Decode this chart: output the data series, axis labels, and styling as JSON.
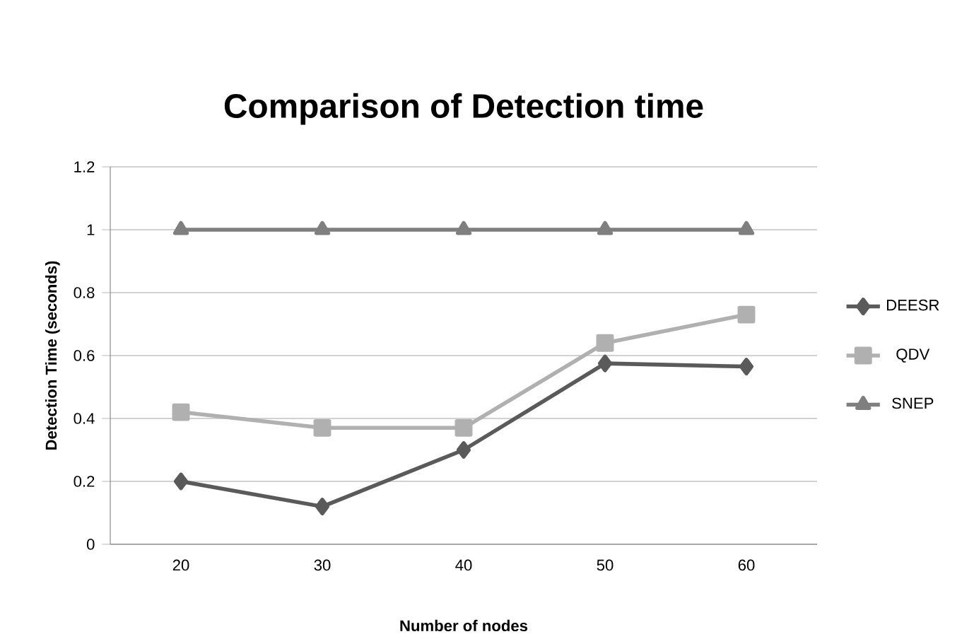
{
  "chart_data": {
    "type": "line",
    "title": "Comparison of Detection time",
    "xlabel": "Number of nodes",
    "ylabel": "Detection Time (seconds)",
    "categories": [
      "20",
      "30",
      "40",
      "50",
      "60"
    ],
    "series": [
      {
        "name": "DEESR",
        "color": "#5a5a5a",
        "marker": "diamond",
        "values": [
          0.2,
          0.12,
          0.3,
          0.575,
          0.565
        ]
      },
      {
        "name": "QDV",
        "color": "#b0b0b0",
        "marker": "square",
        "values": [
          0.42,
          0.37,
          0.37,
          0.64,
          0.73
        ]
      },
      {
        "name": "SNEP",
        "color": "#7f7f7f",
        "marker": "triangle",
        "values": [
          1,
          1,
          1,
          1,
          1
        ]
      }
    ],
    "ylim": [
      0,
      1.2
    ],
    "yticks": [
      0,
      0.2,
      0.4,
      0.6,
      0.8,
      1,
      1.2
    ],
    "grid": "y",
    "legend": "right"
  }
}
